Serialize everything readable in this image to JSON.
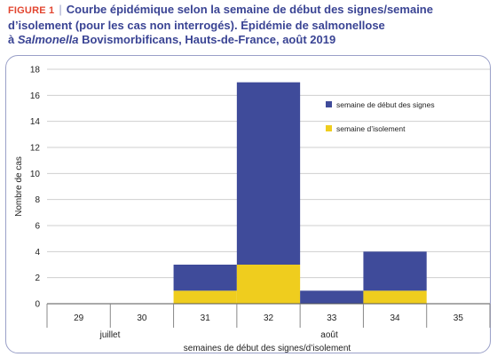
{
  "figure": {
    "label": "FIGURE 1",
    "separator": "|",
    "title_line1": "Courbe épidémique selon la semaine de début des signes/semaine",
    "title_line2": "d’isolement (pour les cas non interrogés). Épidémie de salmonellose",
    "title_line3_italic": "Salmonella",
    "title_line3_prefix": "à ",
    "title_line3_rest": " Bovismorbificans, Hauts-de-France, août 2019"
  },
  "colors": {
    "onset": "#3f4b9a",
    "isolation": "#efcd1e",
    "accent_label": "#e2452f",
    "title": "#3a4494"
  },
  "chart_data": {
    "type": "bar",
    "stacked": true,
    "categories": [
      "29",
      "30",
      "31",
      "32",
      "33",
      "34",
      "35"
    ],
    "series": [
      {
        "name": "semaine de début des signes",
        "values": [
          0,
          0,
          2,
          14,
          1,
          3,
          0
        ]
      },
      {
        "name": "semaine d’isolement",
        "values": [
          0,
          0,
          1,
          3,
          0,
          1,
          0
        ]
      }
    ],
    "ylabel": "Nombre de cas",
    "xlabel": "semaines de début des signes/d’isolement",
    "ylim": [
      0,
      18
    ],
    "yticks": [
      0,
      2,
      4,
      6,
      8,
      10,
      12,
      14,
      16,
      18
    ],
    "month_labels": [
      {
        "text": "juillet",
        "under_category": "29.5"
      },
      {
        "text": "août",
        "under_category": "33"
      }
    ],
    "grid": true,
    "legend_position": "top-right"
  }
}
